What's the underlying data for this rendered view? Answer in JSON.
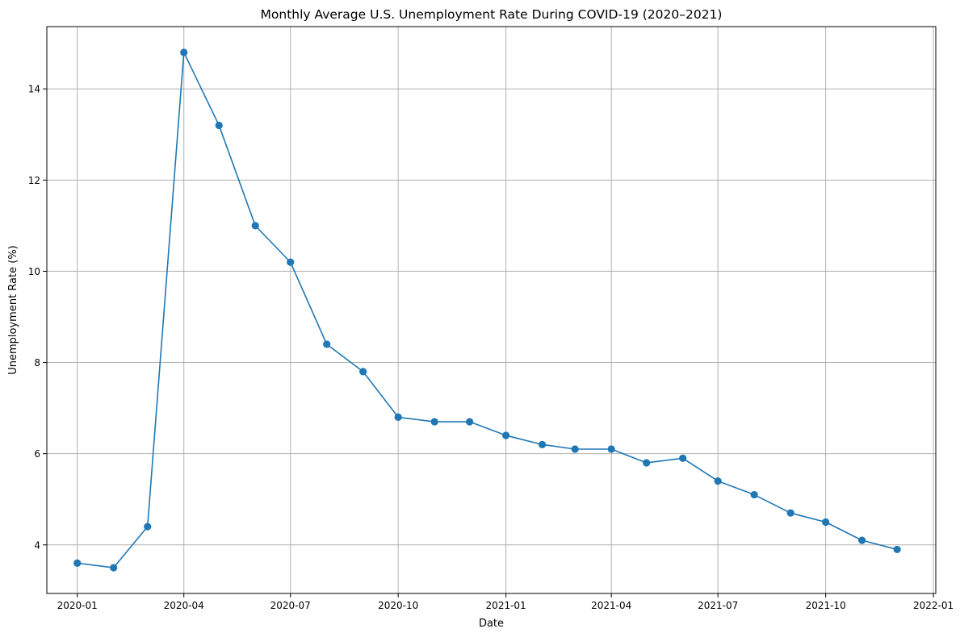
{
  "chart_data": {
    "type": "line",
    "title": "Monthly Average U.S. Unemployment Rate During COVID-19 (2020–2021)",
    "xlabel": "Date",
    "ylabel": "Unemployment Rate (%)",
    "x": [
      "2020-01",
      "2020-02",
      "2020-03",
      "2020-04",
      "2020-05",
      "2020-06",
      "2020-07",
      "2020-08",
      "2020-09",
      "2020-10",
      "2020-11",
      "2020-12",
      "2021-01",
      "2021-02",
      "2021-03",
      "2021-04",
      "2021-05",
      "2021-06",
      "2021-07",
      "2021-08",
      "2021-09",
      "2021-10",
      "2021-11",
      "2021-12"
    ],
    "series": [
      {
        "values": [
          3.6,
          3.5,
          4.4,
          14.8,
          13.2,
          11.0,
          10.2,
          8.4,
          7.8,
          6.8,
          6.7,
          6.7,
          6.4,
          6.2,
          6.1,
          6.1,
          5.8,
          5.9,
          5.4,
          5.1,
          4.7,
          4.5,
          4.1,
          3.9
        ],
        "color": "#1f77b4",
        "marker": "circle"
      }
    ],
    "x_ticks": [
      "2020-01",
      "2020-04",
      "2020-07",
      "2020-10",
      "2021-01",
      "2021-04",
      "2021-07",
      "2021-10",
      "2022-01"
    ],
    "y_ticks": [
      4,
      6,
      8,
      10,
      12,
      14
    ],
    "xlim": [
      "2019-12-06",
      "2022-01-03"
    ],
    "ylim": [
      2.935,
      15.365
    ],
    "grid": true,
    "grid_color": "#b0b0b0"
  }
}
